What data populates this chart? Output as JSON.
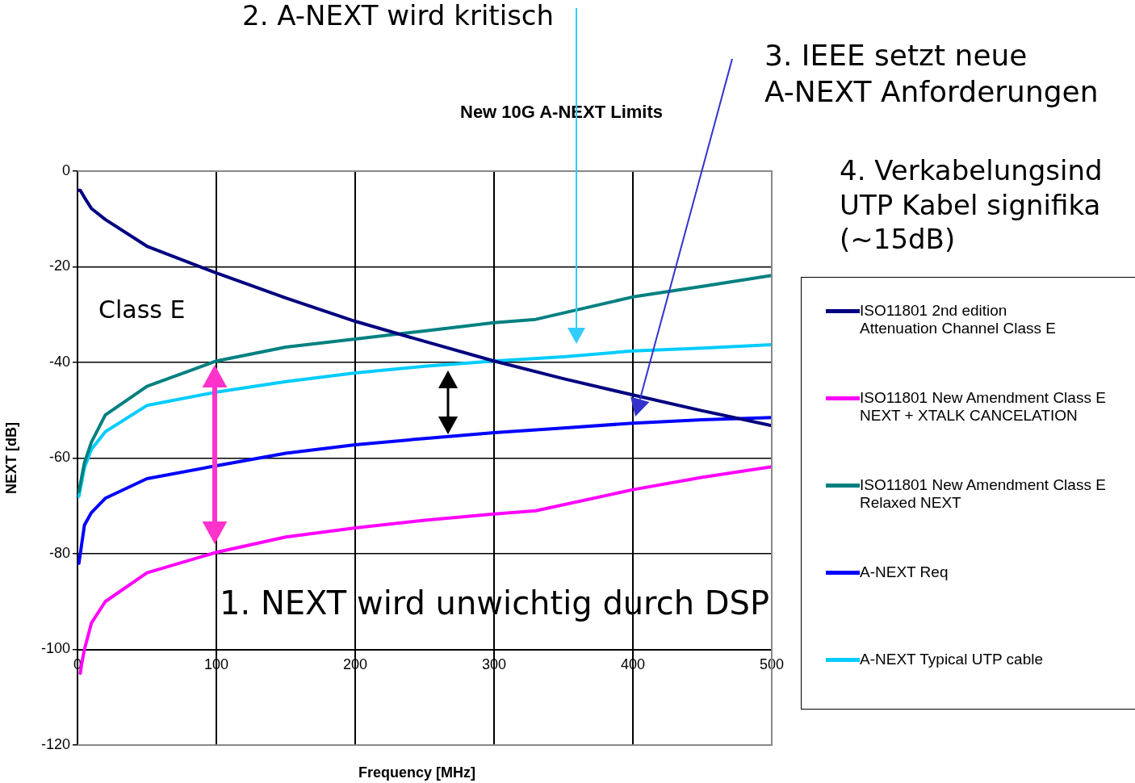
{
  "chart_data": {
    "type": "line",
    "title": "New 10G A-NEXT Limits",
    "xlabel": "Frequency [MHz]",
    "ylabel": "NEXT [dB]",
    "xlim": [
      0,
      500
    ],
    "xticks": [
      0,
      100,
      200,
      300,
      400,
      500
    ],
    "ylim": [
      -120,
      0
    ],
    "yticks": [
      -120,
      -100,
      -80,
      -60,
      -40,
      -20,
      0
    ],
    "grid": true,
    "legend": "right",
    "marker": "none",
    "line_style": "solid",
    "annotations": [
      "Class E",
      "1. NEXT wird unwichtig durch DSP",
      "2. A-NEXT wird kritisch",
      "3. IEEE setzt neue\nA-NEXT Anforderungen",
      "4. Verkabelungsind\nUTP Kabel signifika\n(~15dB)"
    ],
    "series": [
      {
        "name": "ISO11801 2nd edition\nAttenuation Channel Class E",
        "color": "#000080",
        "x": [
          1,
          2,
          5,
          10,
          20,
          50,
          100,
          150,
          200,
          250,
          300,
          350,
          400,
          450,
          500
        ],
        "values": [
          -4,
          -4,
          -5.5,
          -7.8,
          -10.1,
          -15.7,
          -21.3,
          -26.5,
          -31.4,
          -35.6,
          -39.7,
          -43.4,
          -46.8,
          -50.1,
          -53.2
        ]
      },
      {
        "name": "ISO11801 New Amendment Class E\nNEXT + XTALK CANCELATION",
        "color": "#ff00ff",
        "x": [
          2,
          3,
          5,
          10,
          20,
          50,
          100,
          150,
          200,
          250,
          300,
          330,
          400,
          450,
          500
        ],
        "values": [
          -105,
          -103,
          -100,
          -94.5,
          -90,
          -84,
          -79.7,
          -76.5,
          -74.6,
          -73,
          -71.7,
          -71,
          -66.6,
          -64,
          -61.8
        ]
      },
      {
        "name": "ISO11801 New Amendment Class E\nRelaxed NEXT",
        "color": "#008080",
        "x": [
          1,
          5,
          10,
          20,
          50,
          100,
          150,
          200,
          250,
          300,
          330,
          400,
          450,
          500
        ],
        "values": [
          -67,
          -61,
          -56.7,
          -51,
          -45,
          -39.7,
          -36.8,
          -35.1,
          -33.4,
          -31.7,
          -31,
          -26.3,
          -24.1,
          -21.8
        ]
      },
      {
        "name": "A-NEXT Req",
        "color": "#0000ff",
        "x": [
          1,
          5,
          10,
          20,
          50,
          100,
          150,
          200,
          250,
          300,
          350,
          400,
          450,
          500
        ],
        "values": [
          -82,
          -74,
          -71.4,
          -68.4,
          -64.3,
          -61.6,
          -59,
          -57.2,
          -55.9,
          -54.7,
          -53.7,
          -52.7,
          -52,
          -51.5
        ]
      },
      {
        "name": "A-NEXT Typical UTP cable",
        "color": "#00ccff",
        "x": [
          1,
          5,
          10,
          20,
          50,
          100,
          150,
          200,
          250,
          300,
          350,
          400,
          450,
          500
        ],
        "values": [
          -68,
          -62,
          -58.2,
          -54.5,
          -49,
          -46.2,
          -44,
          -42.2,
          -40.8,
          -39.7,
          -38.8,
          -37.6,
          -37,
          -36.3
        ]
      }
    ]
  }
}
